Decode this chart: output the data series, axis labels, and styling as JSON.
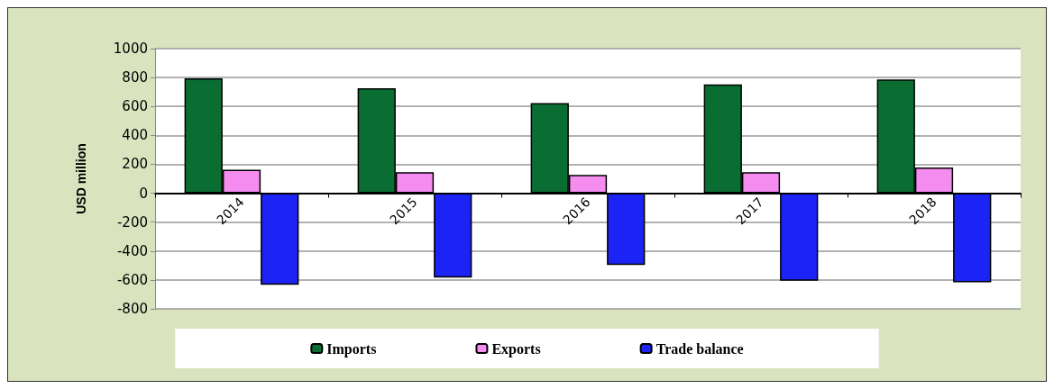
{
  "chart_data": {
    "type": "bar",
    "ylabel": "USD million",
    "categories": [
      "2014",
      "2015",
      "2016",
      "2017",
      "2018"
    ],
    "series": [
      {
        "name": "Imports",
        "color": "#0a6e32",
        "values": [
          795,
          726,
          623,
          753,
          787
        ]
      },
      {
        "name": "Exports",
        "color": "#f58cef",
        "values": [
          162,
          145,
          126,
          145,
          178
        ]
      },
      {
        "name": "Trade balance",
        "color": "#1c24f5",
        "values": [
          -634,
          -583,
          -497,
          -606,
          -617
        ]
      }
    ],
    "ylim": [
      -800,
      1000
    ],
    "yticks": [
      -800,
      -600,
      -400,
      -200,
      0,
      200,
      400,
      600,
      800,
      {
        "value": 1000,
        "label": "1000"
      }
    ],
    "grid": "y",
    "legend": "bottom"
  }
}
